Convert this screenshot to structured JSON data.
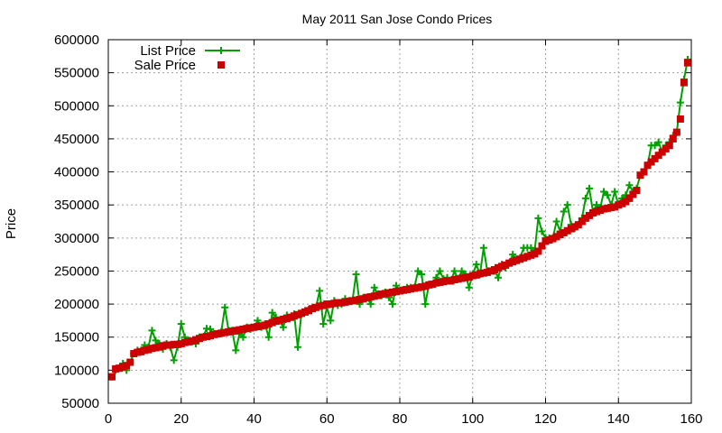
{
  "chart_data": {
    "type": "line",
    "title": "May 2011 San Jose Condo Prices",
    "xlabel": "",
    "ylabel": "Price",
    "xlim": [
      0,
      160
    ],
    "ylim": [
      50000,
      600000
    ],
    "xticks": [
      0,
      20,
      40,
      60,
      80,
      100,
      120,
      140,
      160
    ],
    "yticks": [
      50000,
      100000,
      150000,
      200000,
      250000,
      300000,
      350000,
      400000,
      450000,
      500000,
      550000,
      600000
    ],
    "grid": true,
    "legend_position": "top-left",
    "series": [
      {
        "name": "List Price",
        "color": "#00a000",
        "style": "linespoints-plus",
        "values": [
          90000,
          100000,
          103000,
          110000,
          100000,
          112000,
          125000,
          130000,
          130000,
          138000,
          135000,
          160000,
          145000,
          140000,
          132000,
          140000,
          135000,
          115000,
          135000,
          170000,
          150000,
          145000,
          143000,
          140000,
          150000,
          150000,
          163000,
          162000,
          155000,
          155000,
          158000,
          195000,
          160000,
          160000,
          130000,
          155000,
          150000,
          165000,
          162000,
          165000,
          175000,
          165000,
          170000,
          150000,
          187000,
          180000,
          175000,
          165000,
          183000,
          180000,
          185000,
          135000,
          185000,
          190000,
          192000,
          195000,
          195000,
          220000,
          170000,
          195000,
          175000,
          205000,
          198000,
          200000,
          208000,
          205000,
          205000,
          245000,
          200000,
          210000,
          210000,
          200000,
          225000,
          215000,
          213000,
          218000,
          210000,
          200000,
          228000,
          220000,
          222000,
          225000,
          225000,
          225000,
          250000,
          245000,
          200000,
          230000,
          230000,
          240000,
          250000,
          238000,
          240000,
          235000,
          250000,
          238000,
          250000,
          245000,
          225000,
          245000,
          260000,
          245000,
          285000,
          250000,
          250000,
          250000,
          240000,
          260000,
          255000,
          262000,
          275000,
          268000,
          270000,
          285000,
          285000,
          285000,
          280000,
          330000,
          310000,
          300000,
          300000,
          300000,
          325000,
          310000,
          340000,
          350000,
          320000,
          315000,
          320000,
          330000,
          360000,
          375000,
          340000,
          350000,
          345000,
          370000,
          365000,
          350000,
          370000,
          350000,
          360000,
          365000,
          380000,
          370000,
          375000,
          395000,
          400000,
          410000,
          440000,
          440000,
          445000,
          430000,
          440000,
          445000,
          455000,
          460000,
          505000,
          540000,
          570000
        ]
      },
      {
        "name": "Sale Price",
        "color": "#cc0000",
        "style": "points-square",
        "values": [
          90000,
          102000,
          103000,
          105000,
          107000,
          112000,
          125000,
          127000,
          128000,
          130000,
          131000,
          133000,
          134000,
          135000,
          137000,
          138000,
          138000,
          139000,
          139000,
          140000,
          142000,
          143000,
          144000,
          146000,
          148000,
          150000,
          151000,
          152000,
          154000,
          155000,
          156000,
          157000,
          158000,
          159000,
          160000,
          161000,
          162000,
          163000,
          164000,
          165000,
          166000,
          167000,
          168000,
          170000,
          172000,
          174000,
          175000,
          177000,
          178000,
          180000,
          182000,
          184000,
          186000,
          188000,
          190000,
          193000,
          195000,
          197000,
          198000,
          200000,
          200000,
          201000,
          202000,
          202000,
          203000,
          204000,
          205000,
          206000,
          207000,
          208000,
          210000,
          211000,
          212000,
          213000,
          215000,
          216000,
          217000,
          218000,
          219000,
          220000,
          221000,
          222000,
          223000,
          224000,
          225000,
          226000,
          227000,
          229000,
          230000,
          232000,
          233000,
          234000,
          235000,
          235000,
          237000,
          238000,
          239000,
          240000,
          241000,
          243000,
          244000,
          246000,
          247000,
          248000,
          250000,
          252000,
          255000,
          257000,
          259000,
          262000,
          264000,
          266000,
          268000,
          270000,
          272000,
          274000,
          276000,
          280000,
          288000,
          295000,
          297000,
          299000,
          302000,
          305000,
          308000,
          311000,
          314000,
          317000,
          320000,
          325000,
          330000,
          334000,
          338000,
          340000,
          342000,
          344000,
          345000,
          346000,
          347000,
          350000,
          352000,
          355000,
          360000,
          366000,
          372000,
          395000,
          400000,
          410000,
          415000,
          420000,
          425000,
          430000,
          435000,
          440000,
          450000,
          460000,
          480000,
          535000,
          565000
        ]
      }
    ]
  }
}
